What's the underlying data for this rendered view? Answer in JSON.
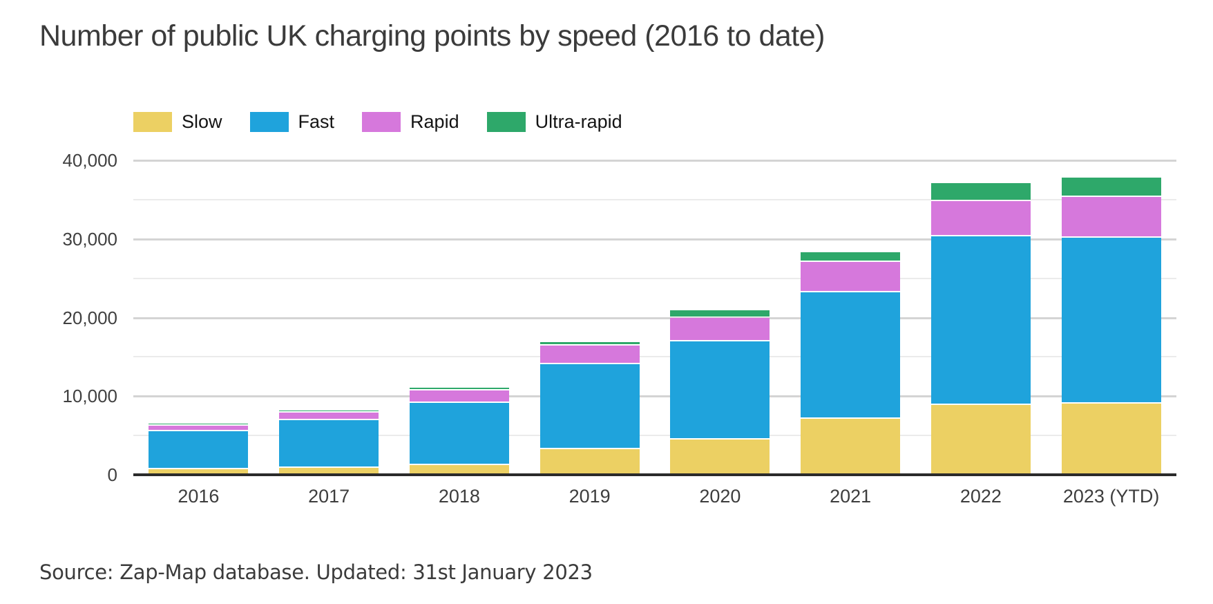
{
  "title": "Number of public UK charging points by speed (2016 to date)",
  "source": "Source: Zap-Map database. Updated: 31st January 2023",
  "colors": {
    "slow": "#ecd063",
    "fast": "#1fa3dc",
    "rapid": "#d678dc",
    "ultra_rapid": "#2ea86a",
    "axis_line": "#2b2b2b",
    "grid_major": "#d4d4d4",
    "grid_minor": "#ebebeb",
    "title_text": "#3b3b3b",
    "tick_text": "#404040"
  },
  "chart_data": {
    "type": "bar",
    "stacked": true,
    "title": "Number of public UK charging points by speed (2016 to date)",
    "categories": [
      "2016",
      "2017",
      "2018",
      "2019",
      "2020",
      "2021",
      "2022",
      "2023 (YTD)"
    ],
    "series": [
      {
        "name": "Slow",
        "color": "#ecd063",
        "values": [
          700,
          880,
          1230,
          3240,
          4470,
          7120,
          8880,
          9030
        ]
      },
      {
        "name": "Fast",
        "color": "#1fa3dc",
        "values": [
          4800,
          6090,
          7890,
          10790,
          12530,
          16050,
          21410,
          21110
        ]
      },
      {
        "name": "Rapid",
        "color": "#d678dc",
        "values": [
          760,
          970,
          1610,
          2440,
          3000,
          3880,
          4550,
          5210
        ]
      },
      {
        "name": "Ultra-rapid",
        "color": "#2ea86a",
        "values": [
          190,
          210,
          360,
          380,
          940,
          1260,
          2260,
          2490
        ]
      }
    ],
    "totals": [
      6450,
      8150,
      11090,
      16850,
      20940,
      28310,
      37100,
      37840
    ],
    "xlabel": "",
    "ylabel": "",
    "ylim": [
      0,
      40000
    ],
    "y_ticks": [
      {
        "value": 0,
        "label": "0"
      },
      {
        "value": 10000,
        "label": "10,000"
      },
      {
        "value": 20000,
        "label": "20,000"
      },
      {
        "value": 30000,
        "label": "30,000"
      },
      {
        "value": 40000,
        "label": "40,000"
      }
    ],
    "grid": true,
    "grid_step_minor": 5000,
    "grid_step_major": 10000,
    "legend_position": "top"
  }
}
